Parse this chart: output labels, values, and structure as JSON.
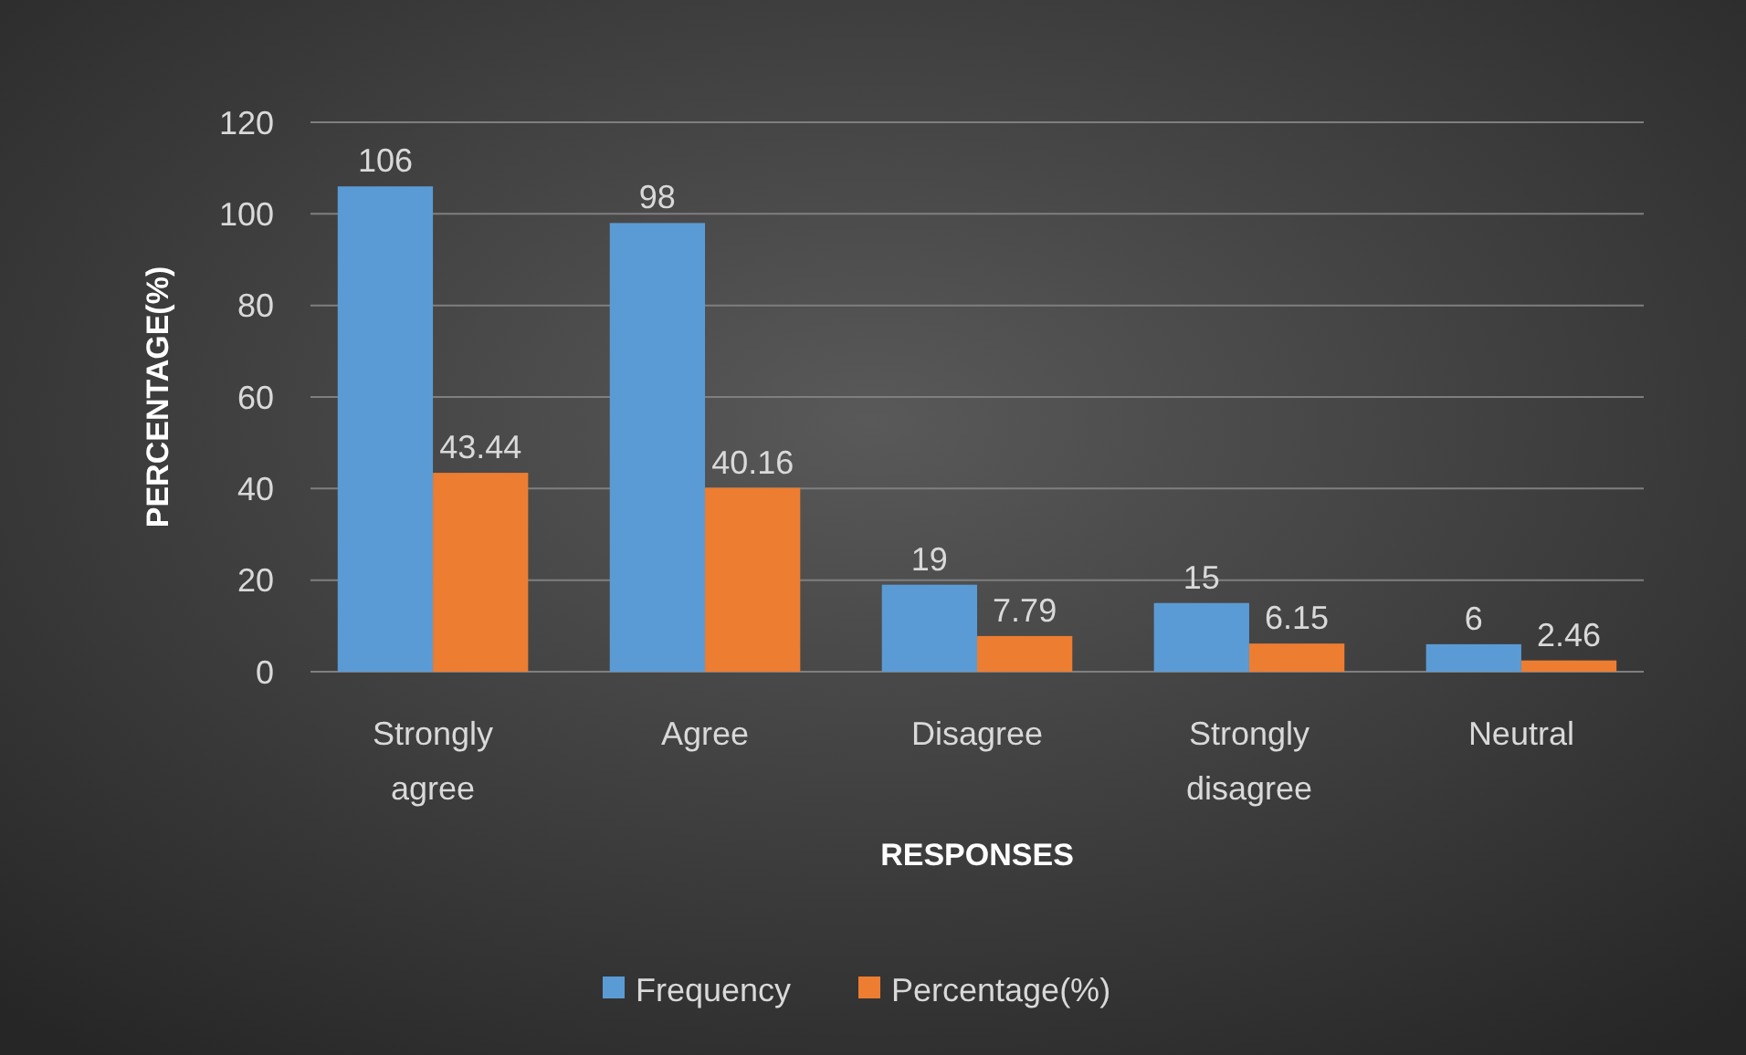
{
  "chart_data": {
    "type": "bar",
    "xlabel": "RESPONSES",
    "ylabel": "PERCENTAGE(%)",
    "categories": [
      "Strongly agree",
      "Agree",
      "Disagree",
      "Strongly disagree",
      "Neutral"
    ],
    "series": [
      {
        "name": "Frequency",
        "color": "#5b9bd5",
        "values": [
          106,
          98,
          19,
          15,
          6
        ]
      },
      {
        "name": "Percentage(%)",
        "color": "#ed7d31",
        "values": [
          43.44,
          40.16,
          7.79,
          6.15,
          2.46
        ]
      }
    ],
    "ylim": [
      0,
      120
    ],
    "yticks": [
      0,
      20,
      40,
      60,
      80,
      100,
      120
    ],
    "grid": "y",
    "legend": "bottom",
    "data_labels": true
  }
}
